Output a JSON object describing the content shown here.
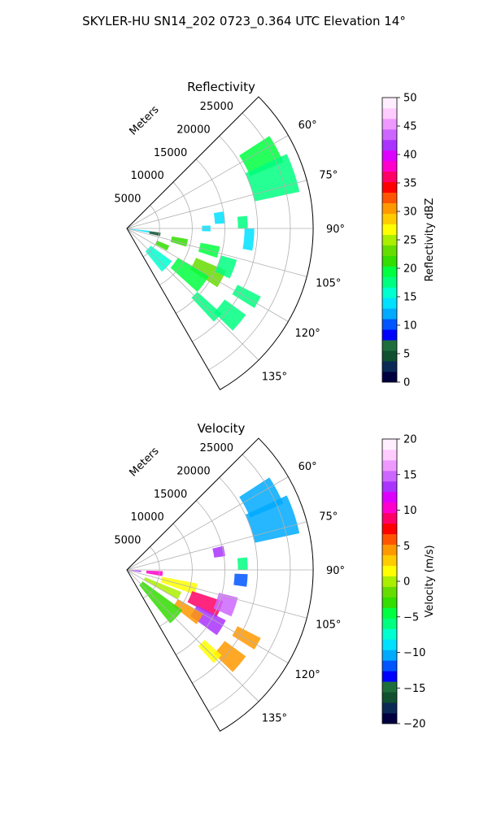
{
  "figure": {
    "title": "SKYLER-HU  SN14_202  0723_0.364 UTC Elevation 14°"
  },
  "chart_data": [
    {
      "type": "heatmap",
      "title": "Reflectivity",
      "radial_label": "Meters",
      "radial_ticks": [
        5000,
        10000,
        15000,
        20000,
        25000
      ],
      "radial_tick_labels": [
        "5000",
        "10000",
        "15000",
        "20000",
        "25000"
      ],
      "r_max": 28500,
      "azimuth_range_deg": [
        45,
        150
      ],
      "azimuth_ticks_deg": [
        60,
        75,
        90,
        105,
        120,
        135
      ],
      "azimuth_tick_labels": [
        "60°",
        "75°",
        "90°",
        "105°",
        "120°",
        "135°"
      ],
      "grid": true,
      "colorbar": {
        "label": "Reflectivity dBZ",
        "min": 0,
        "max": 50,
        "ticks": [
          0,
          5,
          10,
          15,
          20,
          25,
          30,
          35,
          40,
          45,
          50
        ],
        "tick_labels": [
          "0",
          "5",
          "10",
          "15",
          "20",
          "25",
          "30",
          "35",
          "40",
          "45",
          "50"
        ],
        "colormap": [
          "#000040",
          "#0a2a55",
          "#0f5030",
          "#1e6e3c",
          "#0000ff",
          "#0055ff",
          "#00aaff",
          "#00e0ff",
          "#00ffd0",
          "#00ff80",
          "#00ff40",
          "#33dd00",
          "#66dd00",
          "#aaee00",
          "#ffff00",
          "#ffcc00",
          "#ff9900",
          "#ff5500",
          "#ff0000",
          "#ff0066",
          "#ff00cc",
          "#dd00ff",
          "#aa33ff",
          "#cc66ff",
          "#ee99ff",
          "#ffccff",
          "#ffeeff"
        ]
      },
      "echo_regions": [
        {
          "az": [
            57,
            67
          ],
          "r": [
            20500,
            26000
          ],
          "value": 20
        },
        {
          "az": [
            65,
            78
          ],
          "r": [
            20000,
            27000
          ],
          "value": 17
        },
        {
          "az": [
            80,
            87
          ],
          "r": [
            13500,
            15000
          ],
          "value": 14
        },
        {
          "az": [
            84,
            90
          ],
          "r": [
            17000,
            18500
          ],
          "value": 18
        },
        {
          "az": [
            88,
            92
          ],
          "r": [
            11500,
            12800
          ],
          "value": 14
        },
        {
          "az": [
            101,
            108
          ],
          "r": [
            11500,
            14500
          ],
          "value": 20
        },
        {
          "az": [
            100,
            107
          ],
          "r": [
            7000,
            9500
          ],
          "value": 22
        },
        {
          "az": [
            113,
            123
          ],
          "r": [
            11500,
            16500
          ],
          "value": 24
        },
        {
          "az": [
            112,
            119
          ],
          "r": [
            5000,
            7000
          ],
          "value": 22
        },
        {
          "az": [
            120,
            132
          ],
          "r": [
            9000,
            14500
          ],
          "value": 19
        },
        {
          "az": [
            106,
            116
          ],
          "r": [
            15000,
            17500
          ],
          "value": 18
        },
        {
          "az": [
            117,
            122
          ],
          "r": [
            19000,
            23000
          ],
          "value": 17
        },
        {
          "az": [
            126,
            134
          ],
          "r": [
            18500,
            22500
          ],
          "value": 17
        },
        {
          "az": [
            132,
            137
          ],
          "r": [
            14500,
            19500
          ],
          "value": 18
        },
        {
          "az": [
            90,
            100
          ],
          "r": [
            18000,
            19500
          ],
          "value": 14
        },
        {
          "az": [
            96,
            101
          ],
          "r": [
            0,
            3500
          ],
          "value": 14
        },
        {
          "az": [
            97,
            103
          ],
          "r": [
            3500,
            5200
          ],
          "value": 5
        },
        {
          "az": [
            126,
            141
          ],
          "r": [
            4500,
            8500
          ],
          "value": 16
        }
      ]
    },
    {
      "type": "heatmap",
      "title": "Velocity",
      "radial_label": "Meters",
      "radial_ticks": [
        5000,
        10000,
        15000,
        20000,
        25000
      ],
      "radial_tick_labels": [
        "5000",
        "10000",
        "15000",
        "20000",
        "25000"
      ],
      "r_max": 28500,
      "azimuth_range_deg": [
        45,
        150
      ],
      "azimuth_ticks_deg": [
        60,
        75,
        90,
        105,
        120,
        135
      ],
      "azimuth_tick_labels": [
        "60°",
        "75°",
        "90°",
        "105°",
        "120°",
        "135°"
      ],
      "grid": true,
      "colorbar": {
        "label": "Velocity (m/s)",
        "min": -20,
        "max": 20,
        "ticks": [
          -20,
          -15,
          -10,
          -5,
          0,
          5,
          10,
          15,
          20
        ],
        "tick_labels": [
          "−20",
          "−15",
          "−10",
          "−5",
          "0",
          "5",
          "10",
          "15",
          "20"
        ],
        "colormap": [
          "#000040",
          "#0a2a55",
          "#0f5030",
          "#1e6e3c",
          "#0000ff",
          "#0055ff",
          "#00aaff",
          "#00e0ff",
          "#00ffd0",
          "#00ff80",
          "#00ff40",
          "#33dd00",
          "#66dd00",
          "#aaee00",
          "#ffff00",
          "#ffcc00",
          "#ff9900",
          "#ff5500",
          "#ff0000",
          "#ff0066",
          "#ff00cc",
          "#dd00ff",
          "#aa33ff",
          "#cc66ff",
          "#ee99ff",
          "#ffccff",
          "#ffeeff"
        ]
      },
      "echo_regions": [
        {
          "az": [
            57,
            67
          ],
          "r": [
            20500,
            26000
          ],
          "value": -10
        },
        {
          "az": [
            65,
            78
          ],
          "r": [
            20000,
            27000
          ],
          "value": -11
        },
        {
          "az": [
            84,
            90
          ],
          "r": [
            17000,
            18500
          ],
          "value": -6
        },
        {
          "az": [
            76,
            82
          ],
          "r": [
            13500,
            15200
          ],
          "value": 14
        },
        {
          "az": [
            92,
            100
          ],
          "r": [
            3000,
            5500
          ],
          "value": 10
        },
        {
          "az": [
            93,
            99
          ],
          "r": [
            400,
            2200
          ],
          "value": 14
        },
        {
          "az": [
            101,
            110
          ],
          "r": [
            5500,
            11000
          ],
          "value": 2
        },
        {
          "az": [
            108,
            118
          ],
          "r": [
            10500,
            15500
          ],
          "value": 9
        },
        {
          "az": [
            104,
            114
          ],
          "r": [
            14500,
            17500
          ],
          "value": 15
        },
        {
          "az": [
            117,
            126
          ],
          "r": [
            12000,
            17000
          ],
          "value": 13
        },
        {
          "az": [
            120,
            128
          ],
          "r": [
            9000,
            13500
          ],
          "value": 5
        },
        {
          "az": [
            112,
            120
          ],
          "r": [
            3000,
            9000
          ],
          "value": 0
        },
        {
          "az": [
            126,
            141
          ],
          "r": [
            3000,
            10500
          ],
          "value": -3
        },
        {
          "az": [
            117,
            122
          ],
          "r": [
            19000,
            23000
          ],
          "value": 4
        },
        {
          "az": [
            126,
            134
          ],
          "r": [
            18500,
            22500
          ],
          "value": 5
        },
        {
          "az": [
            132,
            137
          ],
          "r": [
            16000,
            19500
          ],
          "value": 2
        },
        {
          "az": [
            92,
            98
          ],
          "r": [
            16500,
            18500
          ],
          "value": -12
        }
      ]
    }
  ]
}
